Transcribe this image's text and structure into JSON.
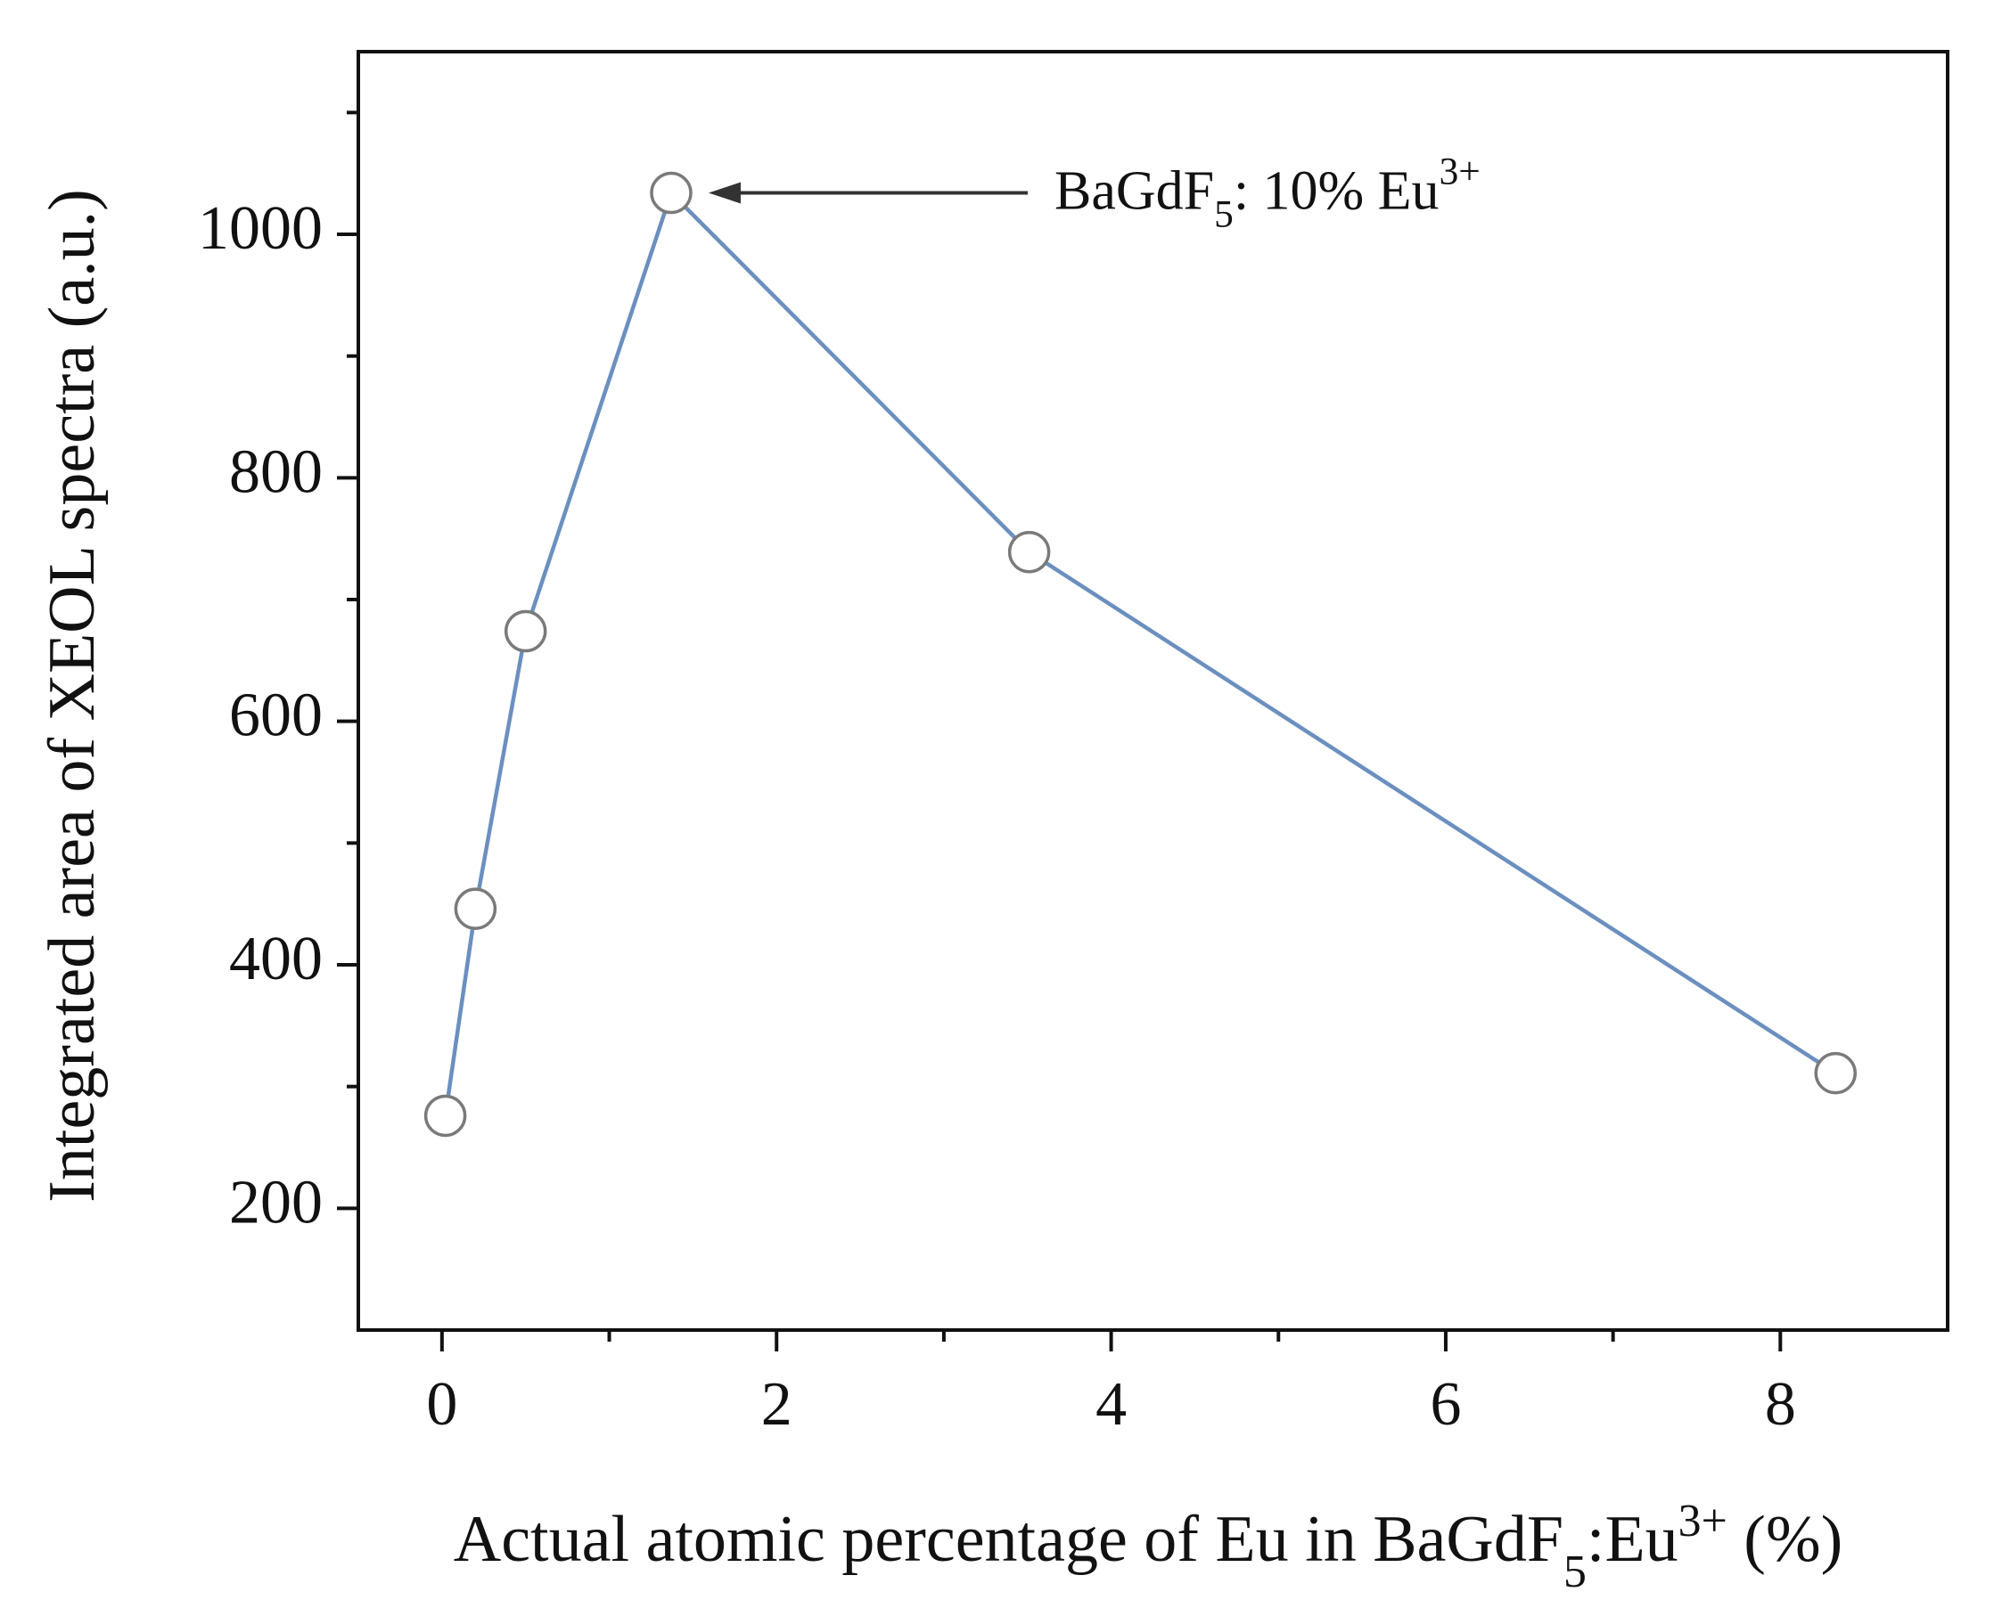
{
  "chart_data": {
    "type": "line",
    "x_label": [
      {
        "text": "Actual atomic percentage of Eu in BaGdF",
        "shift": "none"
      },
      {
        "text": "5",
        "shift": "sub"
      },
      {
        "text": ":Eu",
        "shift": "none"
      },
      {
        "text": "3+",
        "shift": "sup"
      },
      {
        "text": " (%)",
        "shift": "none"
      }
    ],
    "y_label": "Integrated area of XEOL spectra (a.u.)",
    "x": [
      0.02,
      0.2,
      0.5,
      1.37,
      3.51,
      8.33
    ],
    "series": [
      {
        "color": "#6b8fbf",
        "marker_color": "#7a7a7a",
        "values": [
          276,
          446,
          674,
          1034,
          739,
          311
        ]
      }
    ],
    "xlim": [
      -0.5,
      9
    ],
    "xticks": [
      0,
      2,
      4,
      6,
      8
    ],
    "xminorticks": [
      1,
      3,
      5,
      7
    ],
    "ylim": [
      100,
      1150
    ],
    "yticks": [
      200,
      400,
      600,
      800,
      1000
    ],
    "yminorticks": [
      300,
      500,
      700,
      900,
      1100
    ],
    "annotation": {
      "x": 1.37,
      "y": 1034,
      "parts": [
        {
          "text": "BaGdF",
          "shift": "none"
        },
        {
          "text": "5",
          "shift": "sub"
        },
        {
          "text": ": 10% Eu",
          "shift": "none"
        },
        {
          "text": "3+",
          "shift": "sup"
        }
      ]
    }
  }
}
